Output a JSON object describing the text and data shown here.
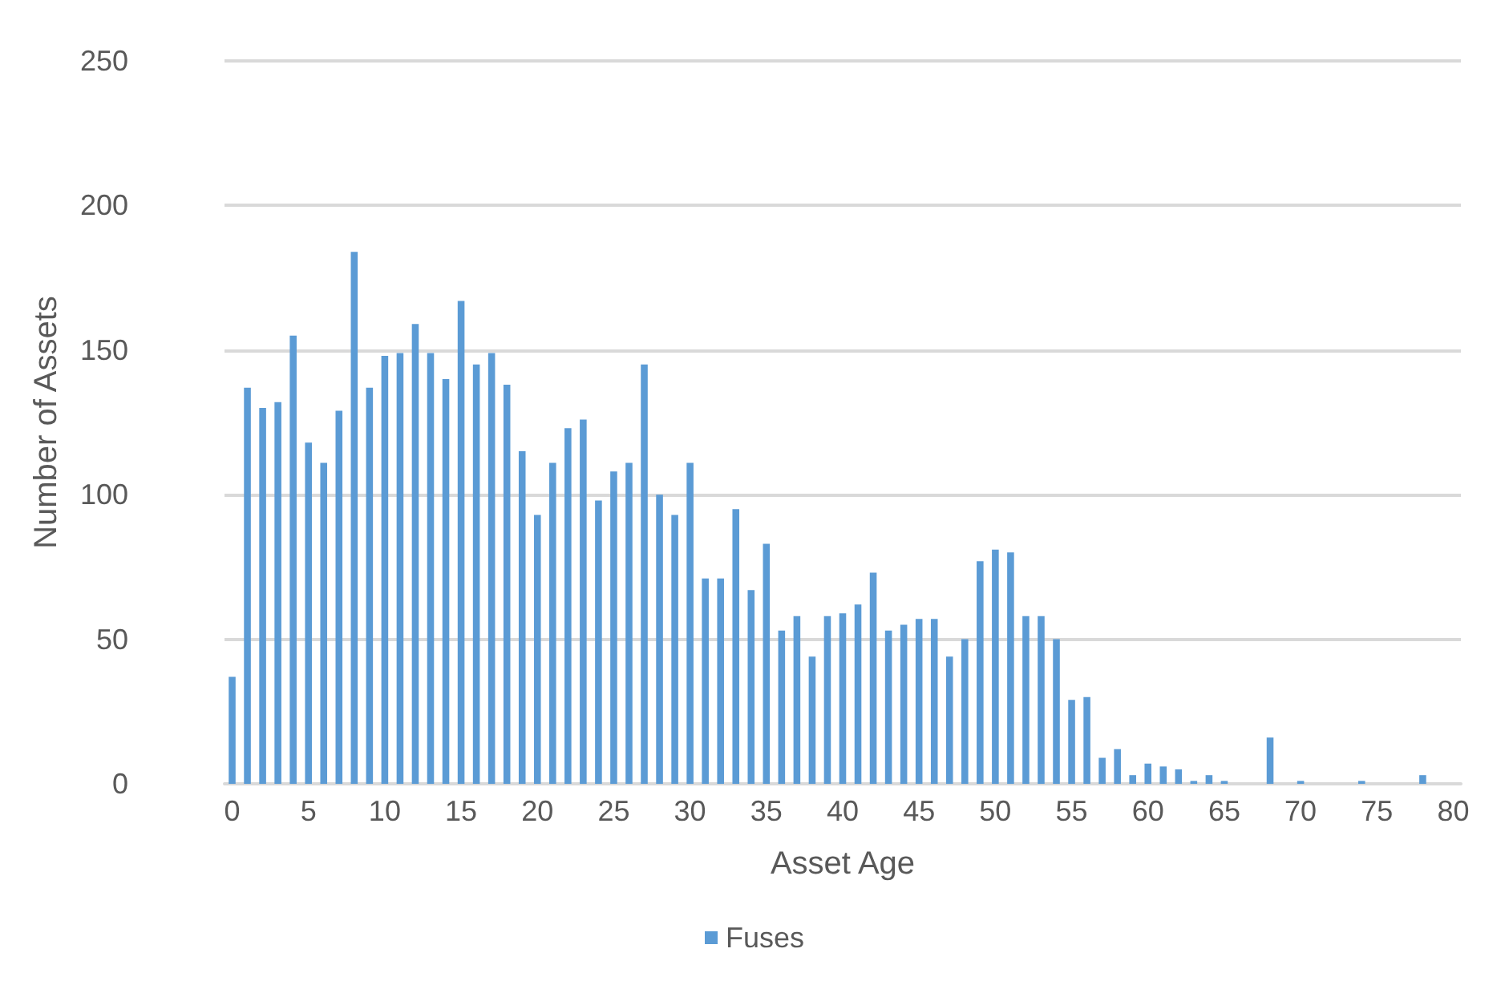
{
  "chart_data": {
    "type": "bar",
    "xlabel": "Asset Age",
    "ylabel": "Number of Assets",
    "categories": [
      "0",
      null,
      null,
      null,
      null,
      "5",
      null,
      null,
      null,
      null,
      "10",
      null,
      null,
      null,
      null,
      "15",
      null,
      null,
      null,
      null,
      "20",
      null,
      null,
      null,
      null,
      "25",
      null,
      null,
      null,
      null,
      "30",
      null,
      null,
      null,
      null,
      "35",
      null,
      null,
      null,
      null,
      "40",
      null,
      null,
      null,
      null,
      "45",
      null,
      null,
      null,
      null,
      "50",
      null,
      null,
      null,
      null,
      "55",
      null,
      null,
      null,
      null,
      "60",
      null,
      null,
      null,
      null,
      "65",
      null,
      null,
      null,
      null,
      "70",
      null,
      null,
      null,
      null,
      "75",
      null,
      null,
      null,
      null,
      "80"
    ],
    "series": [
      {
        "name": "Fuses",
        "color": "#5b9bd5",
        "values": [
          37,
          137,
          130,
          132,
          155,
          118,
          111,
          129,
          184,
          137,
          148,
          149,
          159,
          149,
          140,
          167,
          145,
          149,
          138,
          115,
          93,
          111,
          123,
          126,
          98,
          108,
          111,
          145,
          100,
          93,
          111,
          71,
          71,
          95,
          67,
          83,
          53,
          58,
          44,
          58,
          59,
          62,
          73,
          53,
          55,
          57,
          57,
          44,
          50,
          77,
          81,
          80,
          58,
          58,
          50,
          29,
          30,
          9,
          12,
          3,
          7,
          6,
          5,
          1,
          3,
          1,
          0,
          0,
          16,
          0,
          1,
          0,
          0,
          0,
          1,
          0,
          0,
          0,
          3,
          0,
          0
        ]
      }
    ],
    "ylim": [
      0,
      250
    ],
    "yticks": [
      0,
      50,
      100,
      150,
      200,
      250
    ],
    "grid": "y",
    "legend": "bottom"
  }
}
